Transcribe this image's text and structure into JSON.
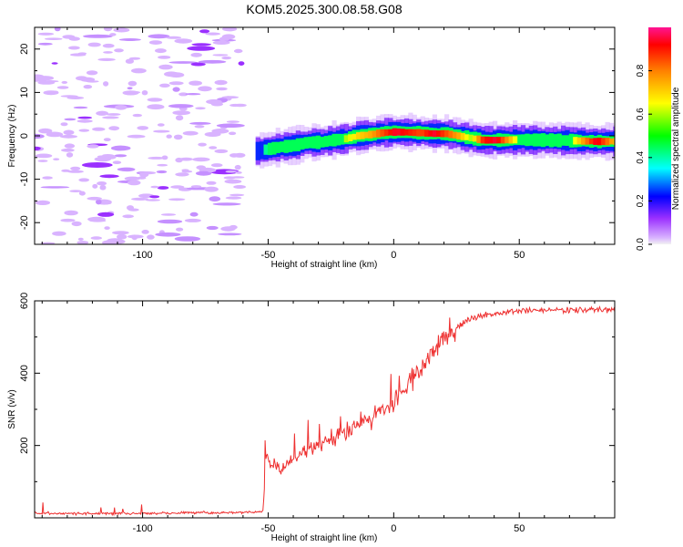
{
  "title": "KOM5.2025.300.08.58.G08",
  "chart_data": [
    {
      "type": "heatmap",
      "xlabel": "Height of straight line (km)",
      "ylabel": "Frequency (Hz)",
      "xlim": [
        -143,
        88
      ],
      "ylim": [
        -25,
        25
      ],
      "xticks": [
        -100,
        -50,
        0,
        50
      ],
      "yticks": [
        -20,
        -10,
        0,
        10,
        20
      ],
      "colorbar": {
        "label": "Normalized spectral amplitude",
        "range": [
          0,
          1
        ],
        "ticks": [
          "0.0",
          "0.2",
          "0.4",
          "0.6",
          "0.8"
        ]
      },
      "noise_region_x": [
        -143,
        -60
      ],
      "ridge": {
        "x": [
          -55,
          -50,
          -45,
          -40,
          -35,
          -30,
          -25,
          -20,
          -15,
          -10,
          -5,
          0,
          5,
          10,
          15,
          20,
          25,
          30,
          35,
          40,
          50,
          60,
          70,
          80,
          88
        ],
        "freq": [
          -3.5,
          -3,
          -2.5,
          -2.2,
          -1.5,
          -1.5,
          -1,
          -0.7,
          0,
          0.3,
          0.7,
          0.9,
          0.8,
          0.7,
          0.5,
          0.5,
          0,
          -0.5,
          -1,
          -1,
          -0.9,
          -1,
          -1.1,
          -1.3,
          -1.3
        ],
        "amplitude": [
          0.35,
          0.45,
          0.45,
          0.55,
          0.6,
          0.5,
          0.55,
          0.6,
          0.7,
          0.75,
          0.85,
          0.95,
          0.9,
          0.85,
          0.95,
          0.85,
          0.75,
          0.6,
          0.9,
          0.95,
          0.55,
          0.5,
          0.6,
          0.95,
          0.7
        ]
      }
    },
    {
      "type": "line",
      "xlabel": "Height of straight line (km)",
      "ylabel": "SNR (v/v)",
      "xlim": [
        -143,
        88
      ],
      "ylim": [
        0,
        600
      ],
      "xticks": [
        -100,
        -50,
        0,
        50
      ],
      "yticks": [
        200,
        400,
        600
      ],
      "series": [
        {
          "name": "SNR",
          "color": "#ee3030",
          "x": [
            -143,
            -100,
            -80,
            -60,
            -52,
            -51,
            -48,
            -45,
            -40,
            -35,
            -30,
            -25,
            -20,
            -15,
            -10,
            -5,
            0,
            5,
            10,
            15,
            20,
            25,
            30,
            40,
            50,
            60,
            70,
            80,
            88
          ],
          "y": [
            12,
            12,
            14,
            14,
            18,
            160,
            150,
            130,
            165,
            185,
            195,
            215,
            235,
            255,
            275,
            295,
            320,
            365,
            405,
            450,
            500,
            525,
            550,
            565,
            572,
            575,
            575,
            575,
            575
          ]
        }
      ]
    }
  ]
}
